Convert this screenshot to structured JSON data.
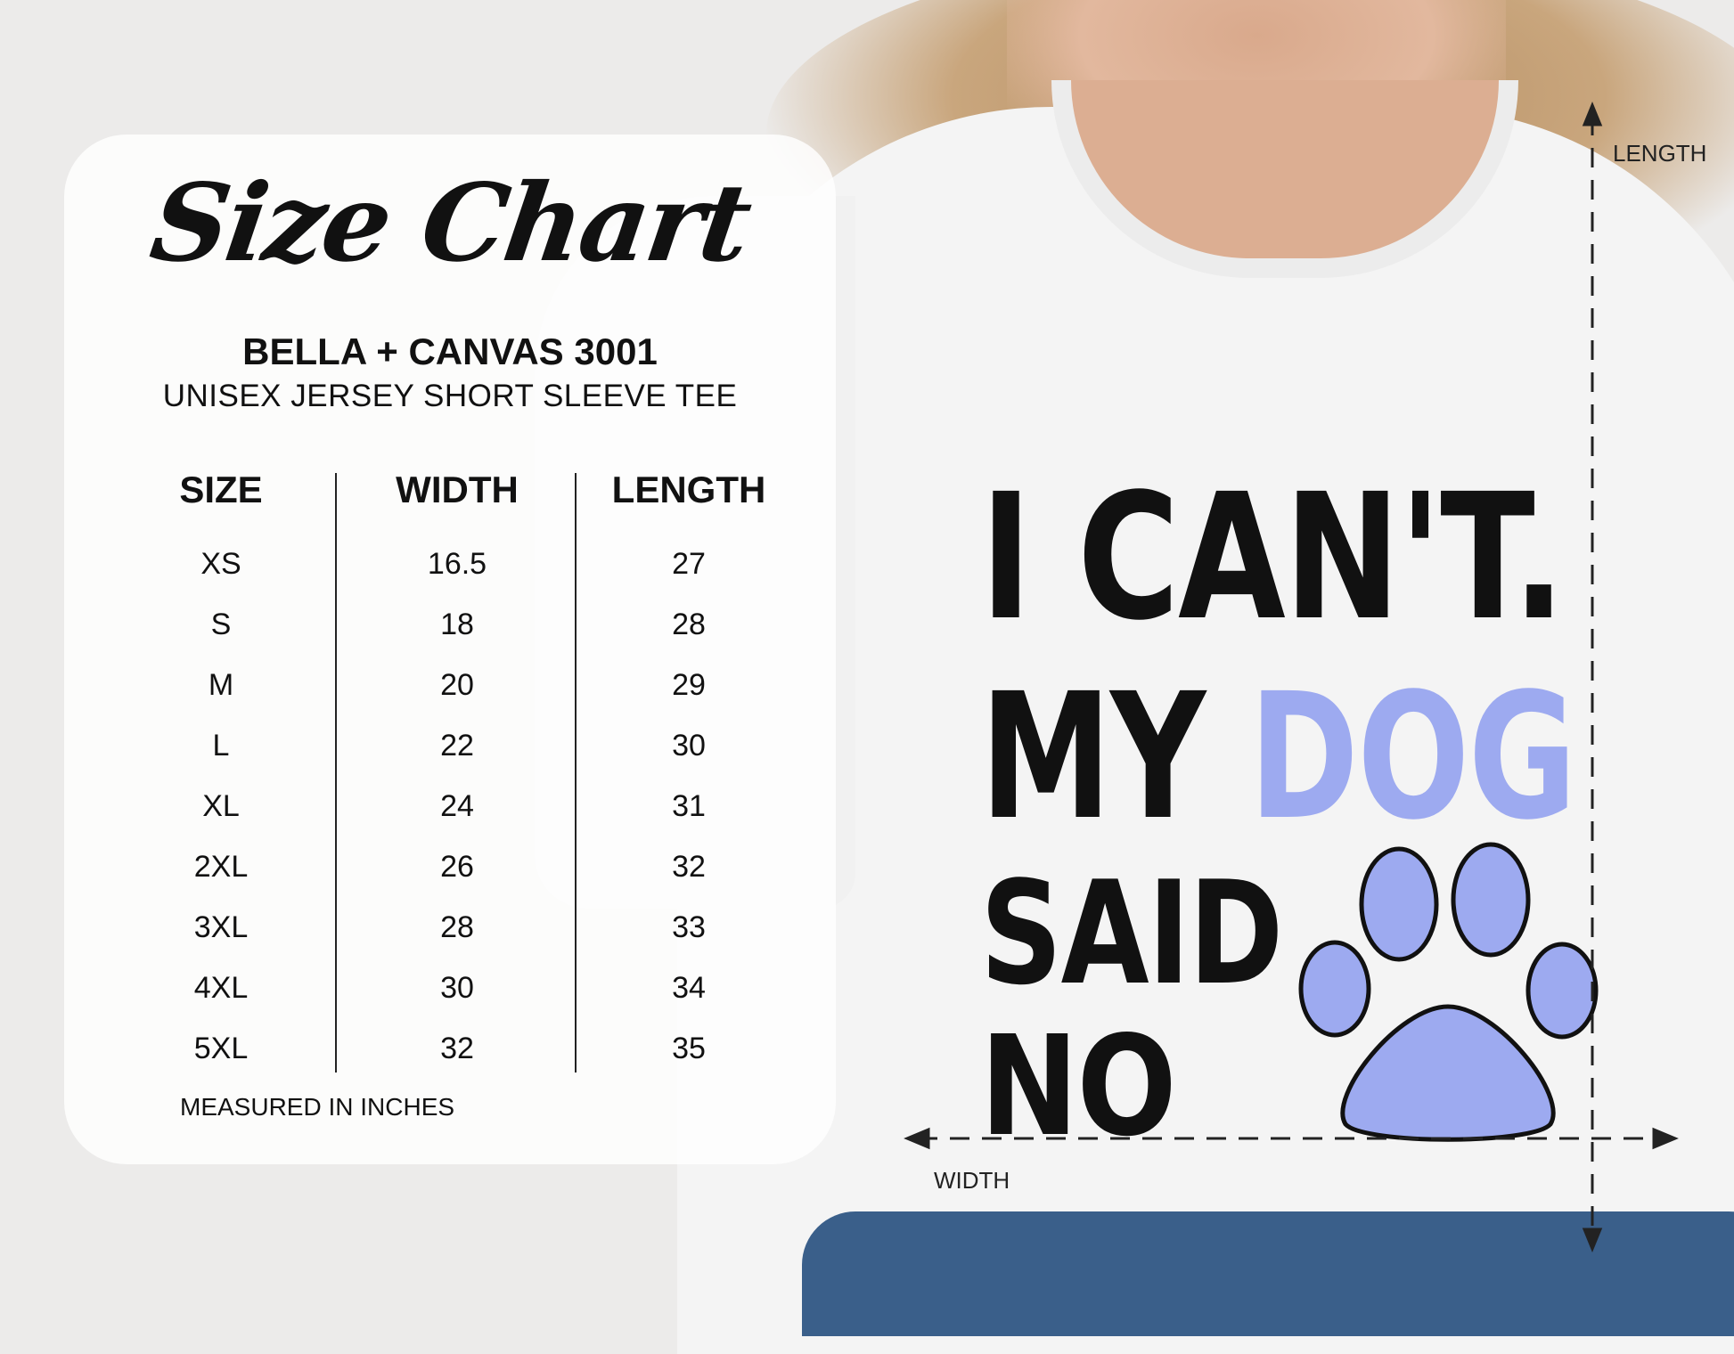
{
  "chart": {
    "title": "Size Chart",
    "brand": "BELLA + CANVAS 3001",
    "model": "UNISEX JERSEY SHORT SLEEVE TEE",
    "headers": [
      "SIZE",
      "WIDTH",
      "LENGTH"
    ],
    "rows": [
      [
        "XS",
        "16.5",
        "27"
      ],
      [
        "S",
        "18",
        "28"
      ],
      [
        "M",
        "20",
        "29"
      ],
      [
        "L",
        "22",
        "30"
      ],
      [
        "XL",
        "24",
        "31"
      ],
      [
        "2XL",
        "26",
        "32"
      ],
      [
        "3XL",
        "28",
        "33"
      ],
      [
        "4XL",
        "30",
        "34"
      ],
      [
        "5XL",
        "32",
        "35"
      ]
    ],
    "note": "MEASURED IN INCHES"
  },
  "shirt": {
    "line1": "I CAN'T.",
    "line2a": "MY",
    "line2b": "DOG",
    "line3": "SAID",
    "line4": "NO",
    "accent_color": "#9daaf0",
    "icon": "paw-print-icon"
  },
  "measure": {
    "length_label": "LENGTH",
    "width_label": "WIDTH"
  }
}
